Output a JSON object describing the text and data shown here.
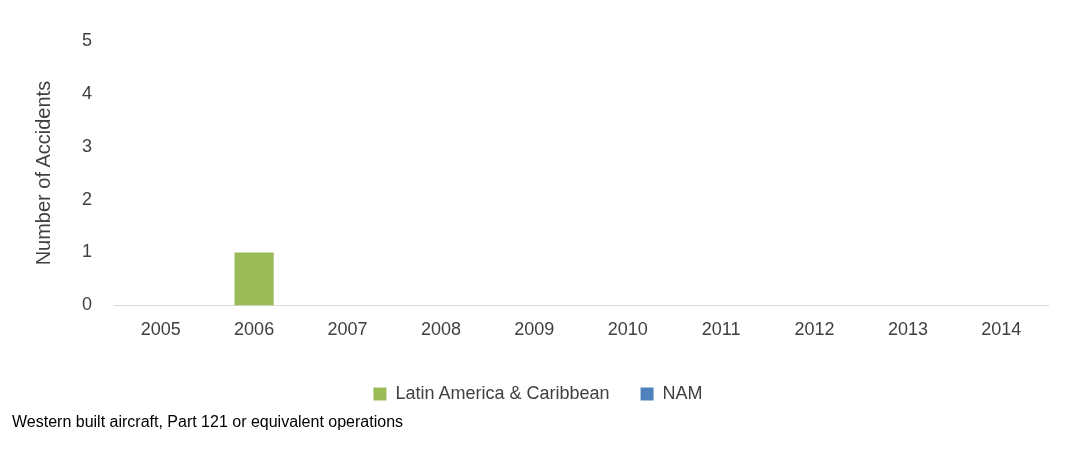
{
  "chart_data": {
    "type": "bar",
    "ylabel": "Number of Accidents",
    "categories": [
      "2005",
      "2006",
      "2007",
      "2008",
      "2009",
      "2010",
      "2011",
      "2012",
      "2013",
      "2014"
    ],
    "series": [
      {
        "name": "Latin America & Caribbean",
        "color": "#9bbb59",
        "values": [
          0,
          1,
          0,
          0,
          0,
          0,
          0,
          0,
          0,
          0
        ]
      },
      {
        "name": "NAM",
        "color": "#4f81bd",
        "values": [
          0,
          0,
          0,
          0,
          0,
          0,
          0,
          0,
          0,
          0
        ]
      }
    ],
    "stacked": true,
    "ylim": [
      0,
      5
    ],
    "yticks": [
      0,
      1,
      2,
      3,
      4,
      5
    ],
    "grid": false,
    "legend": "bottom",
    "annotations": [
      "Western built aircraft, Part 121 or equivalent operations"
    ]
  }
}
